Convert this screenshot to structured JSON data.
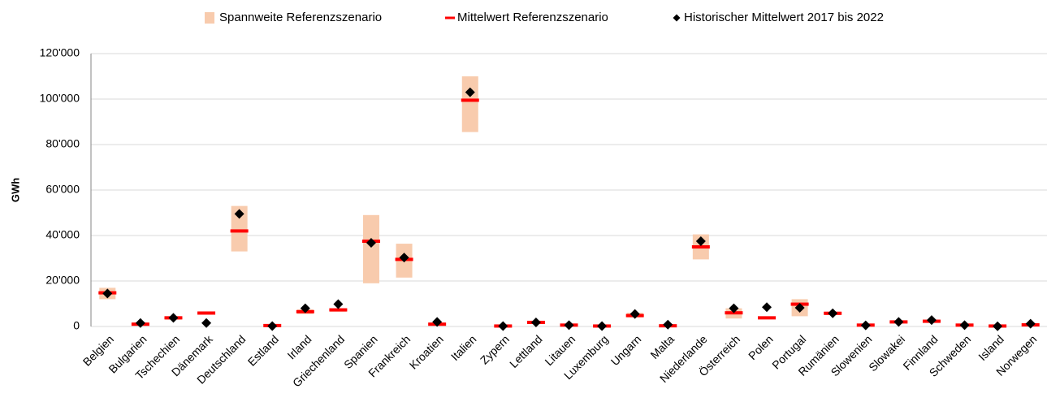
{
  "chart_data": {
    "type": "range",
    "ylabel": "GWh",
    "categories": [
      "Belgien",
      "Bulgarien",
      "Tschechien",
      "Dänemark",
      "Deutschland",
      "Estland",
      "Irland",
      "Griechenland",
      "Spanien",
      "Frankreich",
      "Kroatien",
      "Italien",
      "Zypern",
      "Lettland",
      "Litauen",
      "Luxemburg",
      "Ungarn",
      "Malta",
      "Niederlande",
      "Österreich",
      "Polen",
      "Portugal",
      "Rumänien",
      "Slowenien",
      "Slowakei",
      "Finnland",
      "Schweden",
      "Island",
      "Norwegen"
    ],
    "series": [
      {
        "name": "Spannweite Referenzszenario",
        "color": "#f8cbad",
        "values": [
          [
            12000,
            17000
          ],
          [
            500,
            1800
          ],
          [
            3000,
            4500
          ],
          [
            5800,
            6200
          ],
          [
            33000,
            53000
          ],
          [
            0,
            800
          ],
          [
            5500,
            7500
          ],
          [
            6500,
            8000
          ],
          [
            19000,
            49000
          ],
          [
            21500,
            36400
          ],
          [
            500,
            1800
          ],
          [
            85500,
            110000
          ],
          [
            0,
            500
          ],
          [
            1200,
            2500
          ],
          [
            200,
            1000
          ],
          [
            0,
            500
          ],
          [
            4000,
            6000
          ],
          [
            0,
            800
          ],
          [
            29500,
            40500
          ],
          [
            3500,
            8000
          ],
          [
            3600,
            4000
          ],
          [
            4500,
            12000
          ],
          [
            5000,
            6500
          ],
          [
            200,
            1000
          ],
          [
            1500,
            2500
          ],
          [
            2000,
            3000
          ],
          [
            200,
            1000
          ],
          [
            0,
            500
          ],
          [
            300,
            1500
          ]
        ]
      },
      {
        "name": "Mittelwert Referenzszenario",
        "color": "#ff0000",
        "values": [
          14800,
          1000,
          3800,
          5900,
          42000,
          400,
          6500,
          7300,
          37500,
          29500,
          1000,
          99500,
          200,
          1800,
          600,
          200,
          4800,
          300,
          35000,
          6000,
          3800,
          9800,
          5800,
          600,
          2000,
          2300,
          600,
          200,
          700
        ]
      },
      {
        "name": "Historischer Mittelwert 2017 bis 2022",
        "color": "#000000",
        "values": [
          14500,
          1500,
          3800,
          1500,
          49500,
          200,
          8000,
          9800,
          36800,
          30300,
          2000,
          103000,
          200,
          1800,
          600,
          200,
          5500,
          800,
          37500,
          8000,
          8500,
          8200,
          5800,
          500,
          2000,
          2800,
          600,
          100,
          1200
        ]
      }
    ],
    "ylim": [
      0,
      120000
    ],
    "yticks": [
      0,
      {
        "value": 20000,
        "label": "20'000"
      },
      {
        "value": 40000,
        "label": "40'000"
      },
      {
        "value": 60000,
        "label": "60'000"
      },
      {
        "value": 80000,
        "label": "80'000"
      },
      {
        "value": 100000,
        "label": "100'000"
      },
      {
        "value": 120000,
        "label": "120'000"
      }
    ],
    "grid": true,
    "legend": "top"
  }
}
